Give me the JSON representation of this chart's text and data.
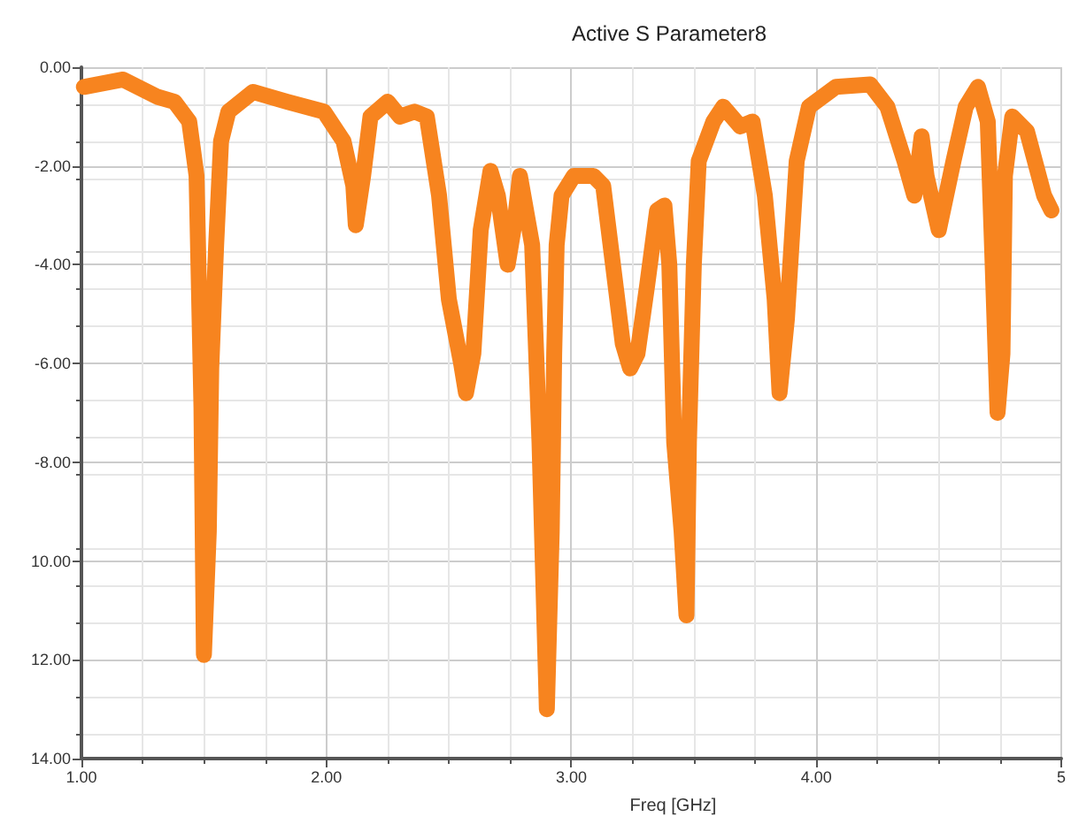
{
  "chart_data": {
    "type": "line",
    "title": "Active S Parameter8",
    "xlabel": "Freq [GHz]",
    "x": [
      1.01,
      1.17,
      1.31,
      1.38,
      1.44,
      1.47,
      1.49,
      1.5,
      1.52,
      1.53,
      1.55,
      1.57,
      1.6,
      1.7,
      1.84,
      1.99,
      2.07,
      2.11,
      2.12,
      2.15,
      2.18,
      2.25,
      2.3,
      2.36,
      2.41,
      2.46,
      2.5,
      2.55,
      2.57,
      2.6,
      2.63,
      2.67,
      2.7,
      2.74,
      2.77,
      2.79,
      2.84,
      2.87,
      2.9,
      2.92,
      2.93,
      2.94,
      2.96,
      3.01,
      3.09,
      3.13,
      3.17,
      3.21,
      3.24,
      3.27,
      3.31,
      3.35,
      3.38,
      3.4,
      3.42,
      3.45,
      3.47,
      3.48,
      3.5,
      3.52,
      3.58,
      3.62,
      3.69,
      3.74,
      3.79,
      3.83,
      3.85,
      3.88,
      3.92,
      3.97,
      4.08,
      4.22,
      4.29,
      4.36,
      4.4,
      4.43,
      4.45,
      4.5,
      4.56,
      4.61,
      4.66,
      4.7,
      4.72,
      4.74,
      4.76,
      4.77,
      4.8,
      4.86,
      4.93,
      4.96
    ],
    "series": [
      {
        "color": "#f7841f",
        "values": [
          -0.4,
          -0.25,
          -0.6,
          -0.7,
          -1.1,
          -2.2,
          -6.9,
          -11.9,
          -9.4,
          -6.1,
          -3.6,
          -1.5,
          -0.9,
          -0.5,
          -0.7,
          -0.9,
          -1.5,
          -2.4,
          -3.2,
          -2.2,
          -1.0,
          -0.7,
          -1.0,
          -0.9,
          -1.0,
          -2.6,
          -4.7,
          -6.0,
          -6.6,
          -5.8,
          -3.3,
          -2.1,
          -2.6,
          -4.0,
          -3.1,
          -2.2,
          -3.6,
          -7.6,
          -13.0,
          -9.4,
          -5.8,
          -3.6,
          -2.6,
          -2.2,
          -2.2,
          -2.4,
          -4.0,
          -5.6,
          -6.1,
          -5.8,
          -4.4,
          -2.9,
          -2.8,
          -4.0,
          -7.6,
          -9.4,
          -11.1,
          -7.6,
          -4.0,
          -1.9,
          -1.1,
          -0.8,
          -1.2,
          -1.1,
          -2.6,
          -4.7,
          -6.6,
          -5.1,
          -1.9,
          -0.8,
          -0.4,
          -0.35,
          -0.8,
          -1.9,
          -2.6,
          -1.4,
          -2.2,
          -3.3,
          -1.9,
          -0.8,
          -0.4,
          -1.1,
          -4.0,
          -7.0,
          -5.8,
          -2.2,
          -1.0,
          -1.3,
          -2.6,
          -2.9
        ]
      }
    ],
    "xlim": [
      1,
      5
    ],
    "xticks": [
      {
        "value": 1,
        "label": "1.00"
      },
      {
        "value": 2,
        "label": "2.00"
      },
      {
        "value": 3,
        "label": "3.00"
      },
      {
        "value": 4,
        "label": "4.00"
      },
      {
        "value": 5,
        "label": "5"
      }
    ],
    "ylim": [
      -14,
      0
    ],
    "yticks": [
      {
        "value": 0,
        "label": "0.00"
      },
      {
        "value": -2,
        "label": "-2.00"
      },
      {
        "value": -4,
        "label": "-4.00"
      },
      {
        "value": -6,
        "label": "-6.00"
      },
      {
        "value": -8,
        "label": "-8.00"
      },
      {
        "value": -10,
        "label": "10.00"
      },
      {
        "value": -12,
        "label": "12.00"
      },
      {
        "value": -14,
        "label": "14.00"
      }
    ],
    "grid": true,
    "line_style": "solid"
  }
}
